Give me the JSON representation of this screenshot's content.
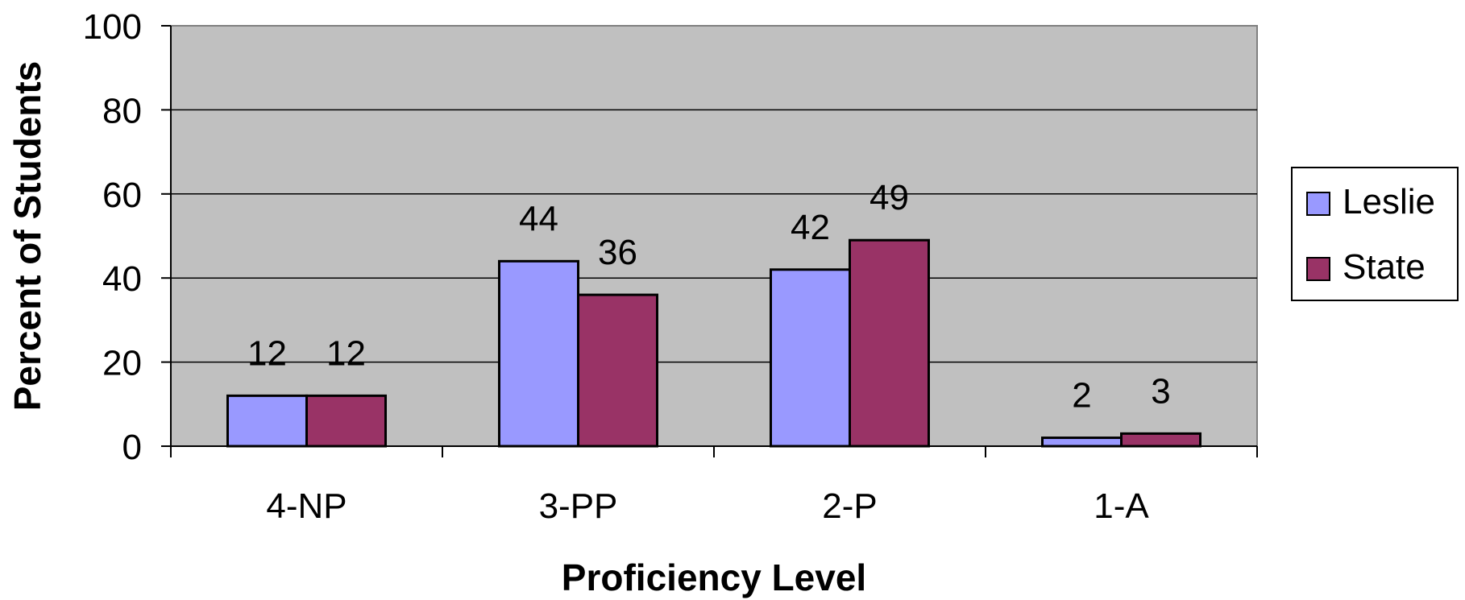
{
  "chart_data": {
    "type": "bar",
    "categories": [
      "4-NP",
      "3-PP",
      "2-P",
      "1-A"
    ],
    "series": [
      {
        "name": "Leslie",
        "values": [
          12,
          44,
          42,
          2
        ],
        "color": "#9999ff"
      },
      {
        "name": "State",
        "values": [
          12,
          36,
          49,
          3
        ],
        "color": "#993366"
      }
    ],
    "xlabel": "Proficiency Level",
    "ylabel": "Percent of Students",
    "ylim": [
      0,
      100
    ],
    "yticks": [
      0,
      20,
      40,
      60,
      80,
      100
    ],
    "grid": true,
    "plot_background": "#c0c0c0",
    "legend": "right"
  }
}
